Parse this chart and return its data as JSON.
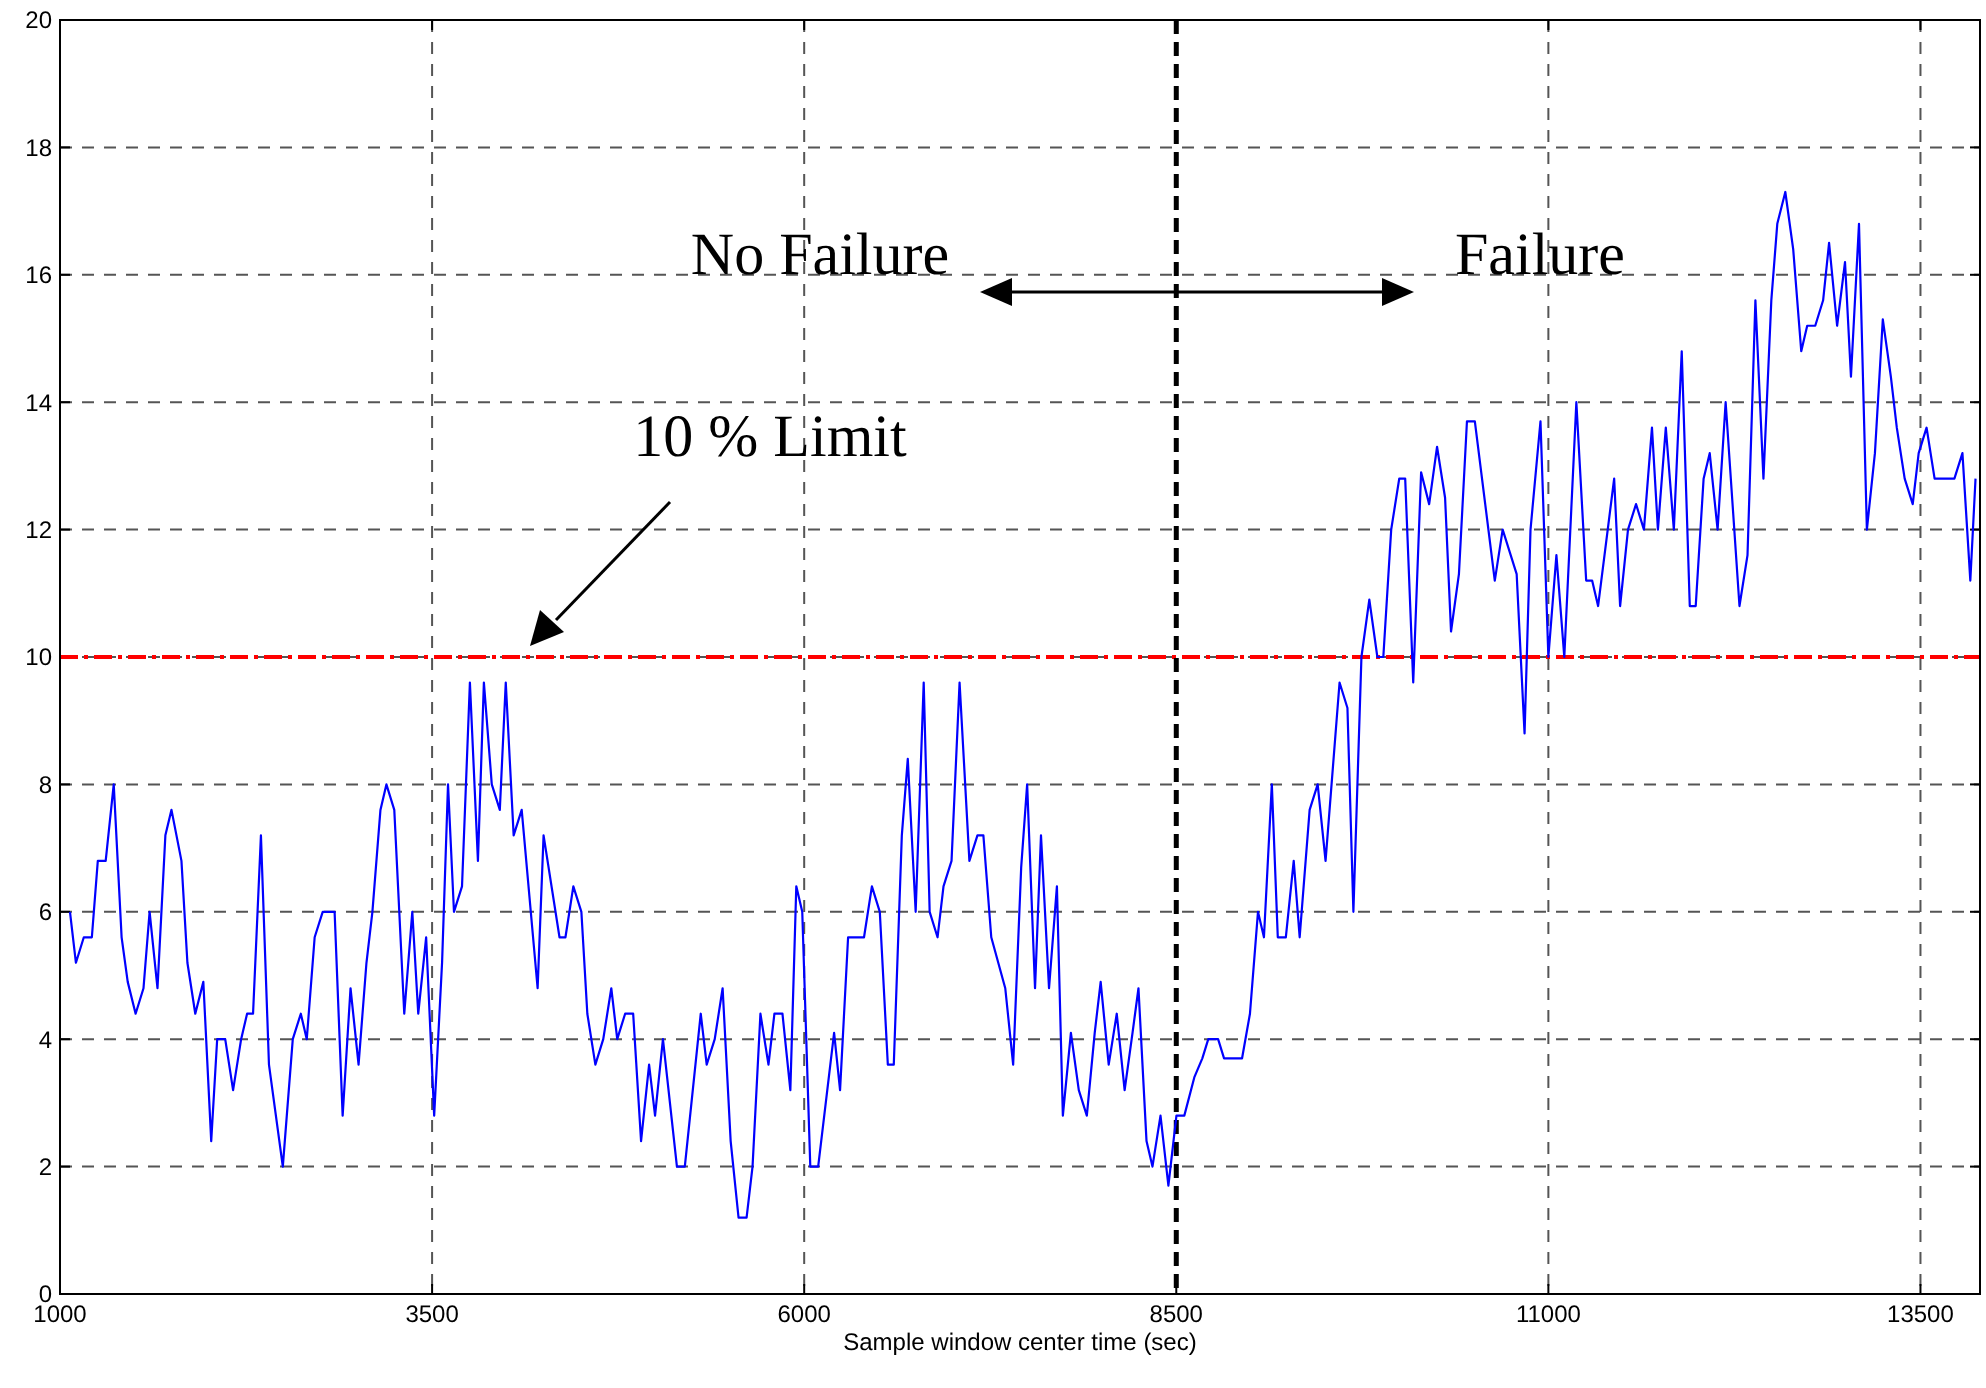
{
  "chart_data": {
    "type": "line",
    "xlabel": "Sample window center time (sec)",
    "xlim": [
      1000,
      13900
    ],
    "xticks": [
      1000,
      3500,
      6000,
      8500,
      11000,
      13500
    ],
    "ylim": [
      0,
      20
    ],
    "yticks": [
      0,
      2,
      4,
      6,
      8,
      10,
      12,
      14,
      16,
      18,
      20
    ],
    "grid": true,
    "marker": "none",
    "line_style": "solid",
    "ref_lines": [
      {
        "axis": "y",
        "value": 10,
        "color": "#ff0000",
        "line_style": "dashed"
      },
      {
        "axis": "x",
        "value": 8500,
        "color": "#000000",
        "line_style": "dashed"
      }
    ],
    "annotations": [
      "No Failure",
      "Failure",
      "10 % Limit"
    ],
    "series": [
      {
        "color": "#0000ff",
        "x": [
          1067,
          1107,
          1160,
          1214,
          1254,
          1307,
          1361,
          1414,
          1455,
          1508,
          1561,
          1602,
          1655,
          1708,
          1749,
          1816,
          1856,
          1909,
          1963,
          2016,
          2056,
          2110,
          2163,
          2217,
          2257,
          2297,
          2350,
          2404,
          2497,
          2564,
          2618,
          2658,
          2711,
          2765,
          2845,
          2899,
          2952,
          3006,
          3059,
          3099,
          3153,
          3193,
          3246,
          3313,
          3367,
          3407,
          3460,
          3514,
          3567,
          3607,
          3647,
          3701,
          3754,
          3808,
          3848,
          3901,
          3955,
          3995,
          4048,
          4102,
          4209,
          4249,
          4356,
          4396,
          4449,
          4503,
          4543,
          4597,
          4650,
          4704,
          4744,
          4797,
          4851,
          4904,
          4958,
          4998,
          5051,
          5145,
          5198,
          5305,
          5345,
          5399,
          5452,
          5506,
          5559,
          5613,
          5653,
          5706,
          5760,
          5800,
          5854,
          5907,
          5947,
          5987,
          6041,
          6094,
          6201,
          6241,
          6295,
          6402,
          6455,
          6508,
          6562,
          6602,
          6656,
          6696,
          6749,
          6803,
          6843,
          6896,
          6936,
          6990,
          7044,
          7110,
          7164,
          7204,
          7257,
          7351,
          7404,
          7458,
          7498,
          7551,
          7591,
          7645,
          7698,
          7738,
          7792,
          7845,
          7899,
          7952,
          7992,
          8046,
          8100,
          8153,
          8206,
          8246,
          8300,
          8340,
          8394,
          8447,
          8501,
          8554,
          8621,
          8675,
          8715,
          8781,
          8821,
          8942,
          8995,
          9049,
          9089,
          9142,
          9182,
          9236,
          9289,
          9329,
          9396,
          9450,
          9503,
          9597,
          9650,
          9690,
          9744,
          9797,
          9851,
          9891,
          9944,
          9998,
          10038,
          10092,
          10145,
          10199,
          10252,
          10306,
          10346,
          10399,
          10453,
          10506,
          10640,
          10693,
          10787,
          10840,
          10880,
          10947,
          11000,
          11054,
          11107,
          11188,
          11254,
          11294,
          11334,
          11442,
          11482,
          11535,
          11589,
          11642,
          11696,
          11736,
          11789,
          11843,
          11896,
          11950,
          11990,
          12043,
          12084,
          12137,
          12191,
          12284,
          12338,
          12391,
          12445,
          12498,
          12538,
          12592,
          12645,
          12699,
          12739,
          12793,
          12846,
          12886,
          12940,
          12993,
          13033,
          13087,
          13140,
          13194,
          13247,
          13301,
          13341,
          13394,
          13448,
          13488,
          13541,
          13595,
          13728,
          13782,
          13835,
          13870
        ],
        "values": [
          6.0,
          5.2,
          5.6,
          5.6,
          6.8,
          6.8,
          8.0,
          5.6,
          4.9,
          4.4,
          4.8,
          6.0,
          4.8,
          7.2,
          7.6,
          6.8,
          5.2,
          4.4,
          4.9,
          2.4,
          4.0,
          4.0,
          3.2,
          4.0,
          4.4,
          4.4,
          7.2,
          3.6,
          2.0,
          4.0,
          4.4,
          4.0,
          5.6,
          6.0,
          6.0,
          2.8,
          4.8,
          3.6,
          5.2,
          6.0,
          7.6,
          8.0,
          7.6,
          4.4,
          6.0,
          4.4,
          5.6,
          2.8,
          5.2,
          8.0,
          6.0,
          6.4,
          9.6,
          6.8,
          9.6,
          8.0,
          7.6,
          9.6,
          7.2,
          7.6,
          4.8,
          7.2,
          5.6,
          5.6,
          6.4,
          6.0,
          4.4,
          3.6,
          4.0,
          4.8,
          4.0,
          4.4,
          4.4,
          2.4,
          3.6,
          2.8,
          4.0,
          2.0,
          2.0,
          4.4,
          3.6,
          4.0,
          4.8,
          2.4,
          1.2,
          1.2,
          2.0,
          4.4,
          3.6,
          4.4,
          4.4,
          3.2,
          6.4,
          6.0,
          2.0,
          2.0,
          4.1,
          3.2,
          5.6,
          5.6,
          6.4,
          6.0,
          3.6,
          3.6,
          7.2,
          8.4,
          6.0,
          9.6,
          6.0,
          5.6,
          6.4,
          6.8,
          9.6,
          6.8,
          7.2,
          7.2,
          5.6,
          4.8,
          3.6,
          6.7,
          8.0,
          4.8,
          7.2,
          4.8,
          6.4,
          2.8,
          4.1,
          3.2,
          2.8,
          4.1,
          4.9,
          3.6,
          4.4,
          3.2,
          4.1,
          4.8,
          2.4,
          2.0,
          2.8,
          1.7,
          2.8,
          2.8,
          3.4,
          3.7,
          4.0,
          4.0,
          3.7,
          3.7,
          4.4,
          6.0,
          5.6,
          8.0,
          5.6,
          5.6,
          6.8,
          5.6,
          7.6,
          8.0,
          6.8,
          9.6,
          9.2,
          6.0,
          10.0,
          10.9,
          10.0,
          10.0,
          12.0,
          12.8,
          12.8,
          9.6,
          12.9,
          12.4,
          13.3,
          12.5,
          10.4,
          11.3,
          13.7,
          13.7,
          11.2,
          12.0,
          11.3,
          8.8,
          12.0,
          13.7,
          10.0,
          11.6,
          10.0,
          14.0,
          11.2,
          11.2,
          10.8,
          12.8,
          10.8,
          12.0,
          12.4,
          12.0,
          13.6,
          12.0,
          13.6,
          12.0,
          14.8,
          10.8,
          10.8,
          12.8,
          13.2,
          12.0,
          14.0,
          10.8,
          11.6,
          15.6,
          12.8,
          15.6,
          16.8,
          17.3,
          16.4,
          14.8,
          15.2,
          15.2,
          15.6,
          16.5,
          15.2,
          16.2,
          14.4,
          16.8,
          12.0,
          13.2,
          15.3,
          14.4,
          13.6,
          12.8,
          12.4,
          13.2,
          13.6,
          12.8,
          12.8,
          13.2,
          11.2,
          12.8
        ]
      }
    ]
  }
}
